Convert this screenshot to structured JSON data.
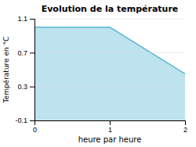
{
  "chart_data": {
    "type": "area",
    "title": "Evolution de la température",
    "xlabel": "heure par heure",
    "ylabel": "Température en °C",
    "x": [
      0,
      1,
      2
    ],
    "values": [
      1.0,
      1.0,
      0.45
    ],
    "color": "#5bb8d4",
    "xlim": [
      0,
      2
    ],
    "ylim": [
      -0.1,
      1.1
    ],
    "xticks": [
      0,
      1,
      2
    ],
    "yticks": [
      -0.1,
      0.3,
      0.7,
      1.1
    ],
    "grid": true
  }
}
